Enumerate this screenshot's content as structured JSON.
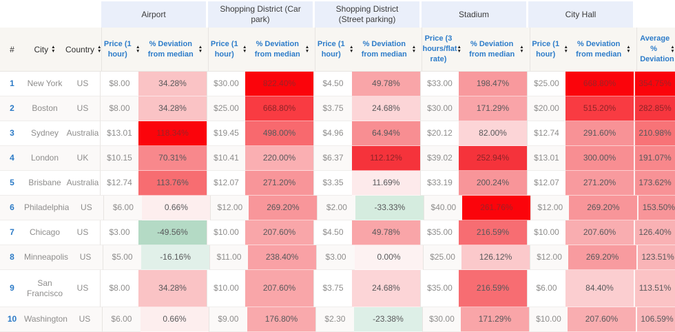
{
  "colors": {
    "accent_blue": "#2d7cc9",
    "rank_blue": "#2b7ac6",
    "group_header_bg": "#eaeffa",
    "subheader_bg": "#f8f6f2",
    "heat_max_red": "#fb040b",
    "heat_green_max": "#b4dac5",
    "text_muted": "#8e8d8c",
    "text_dev": "#58585a"
  },
  "table": {
    "left_headers": [
      {
        "label": "#",
        "sortable": false
      },
      {
        "label": "City",
        "sortable": true
      },
      {
        "label": "Country",
        "sortable": true
      }
    ],
    "deviation_label": "% Deviation from median",
    "avg_header": "Average % Deviation",
    "groups": [
      {
        "title": "Airport",
        "price_label": "Price (1 hour)"
      },
      {
        "title": "Shopping District (Car park)",
        "price_label": "Price (1 hour)"
      },
      {
        "title": "Shopping District (Street parking)",
        "price_label": "Price (1 hour)"
      },
      {
        "title": "Stadium",
        "price_label": "Price (3 hours/flat rate)"
      },
      {
        "title": "City Hall",
        "price_label": "Price (1 hour)"
      }
    ],
    "rows": [
      {
        "rank": "1",
        "city": "New York",
        "country": "US",
        "tall": false,
        "cells": [
          {
            "price": "$8.00",
            "dev": "34.28%",
            "bg": "#fac3c5"
          },
          {
            "price": "$30.00",
            "dev": "822.40%",
            "bg": "#fb040b",
            "tc": "#a02126"
          },
          {
            "price": "$4.50",
            "dev": "49.78%",
            "bg": "#f9a5a8"
          },
          {
            "price": "$33.00",
            "dev": "198.47%",
            "bg": "#f8999d"
          },
          {
            "price": "$25.00",
            "dev": "668.80%",
            "bg": "#fb040b",
            "tc": "#a02126"
          }
        ],
        "avg": {
          "dev": "354.75%",
          "bg": "#fb040b",
          "tc": "#a02126"
        }
      },
      {
        "rank": "2",
        "city": "Boston",
        "country": "US",
        "tall": false,
        "cells": [
          {
            "price": "$8.00",
            "dev": "34.28%",
            "bg": "#fac3c5"
          },
          {
            "price": "$25.00",
            "dev": "668.80%",
            "bg": "#f93b42",
            "tc": "#8c2327"
          },
          {
            "price": "$3.75",
            "dev": "24.68%",
            "bg": "#fcd5d7"
          },
          {
            "price": "$30.00",
            "dev": "171.29%",
            "bg": "#f9a4a8"
          },
          {
            "price": "$20.00",
            "dev": "515.20%",
            "bg": "#f93b42",
            "tc": "#8c2327"
          }
        ],
        "avg": {
          "dev": "282.85%",
          "bg": "#f7363e",
          "tc": "#8c2327"
        }
      },
      {
        "rank": "3",
        "city": "Sydney",
        "country": "Australia",
        "tall": false,
        "cells": [
          {
            "price": "$13.01",
            "dev": "118.34%",
            "bg": "#fb040b",
            "tc": "#a02126"
          },
          {
            "price": "$19.45",
            "dev": "498.00%",
            "bg": "#f8696e"
          },
          {
            "price": "$4.96",
            "dev": "64.94%",
            "bg": "#f88e92"
          },
          {
            "price": "$20.12",
            "dev": "82.00%",
            "bg": "#fcd5d7"
          },
          {
            "price": "$12.74",
            "dev": "291.60%",
            "bg": "#f89296"
          }
        ],
        "avg": {
          "dev": "210.98%",
          "bg": "#f87377"
        }
      },
      {
        "rank": "4",
        "city": "London",
        "country": "UK",
        "tall": false,
        "cells": [
          {
            "price": "$10.15",
            "dev": "70.31%",
            "bg": "#f8888c"
          },
          {
            "price": "$10.41",
            "dev": "220.00%",
            "bg": "#faafb2"
          },
          {
            "price": "$6.37",
            "dev": "112.12%",
            "bg": "#f5333b",
            "tc": "#8c2327"
          },
          {
            "price": "$39.02",
            "dev": "252.94%",
            "bg": "#f5333b",
            "tc": "#8c2327"
          },
          {
            "price": "$13.01",
            "dev": "300.00%",
            "bg": "#f88e92"
          }
        ],
        "avg": {
          "dev": "191.07%",
          "bg": "#f8878b"
        }
      },
      {
        "rank": "5",
        "city": "Brisbane",
        "country": "Australia",
        "tall": false,
        "cells": [
          {
            "price": "$12.74",
            "dev": "113.76%",
            "bg": "#f76d71"
          },
          {
            "price": "$12.07",
            "dev": "271.20%",
            "bg": "#f89599"
          },
          {
            "price": "$3.35",
            "dev": "11.69%",
            "bg": "#fdeaeb"
          },
          {
            "price": "$33.19",
            "dev": "200.24%",
            "bg": "#f89599"
          },
          {
            "price": "$12.07",
            "dev": "271.20%",
            "bg": "#f89a9e"
          }
        ],
        "avg": {
          "dev": "173.62%",
          "bg": "#f89296"
        }
      },
      {
        "rank": "6",
        "city": "Philadelphia",
        "country": "US",
        "tall": false,
        "cells": [
          {
            "price": "$6.00",
            "dev": "0.66%",
            "bg": "#fdeeee"
          },
          {
            "price": "$12.00",
            "dev": "269.20%",
            "bg": "#f8969a"
          },
          {
            "price": "$2.00",
            "dev": "-33.33%",
            "bg": "#d5ecdf"
          },
          {
            "price": "$40.00",
            "dev": "261.76%",
            "bg": "#fb040b",
            "tc": "#a02126"
          },
          {
            "price": "$12.00",
            "dev": "269.20%",
            "bg": "#f89599"
          }
        ],
        "avg": {
          "dev": "153.50%",
          "bg": "#f89599"
        }
      },
      {
        "rank": "7",
        "city": "Chicago",
        "country": "US",
        "tall": false,
        "cells": [
          {
            "price": "$3.00",
            "dev": "-49.56%",
            "bg": "#b4dac5"
          },
          {
            "price": "$10.00",
            "dev": "207.60%",
            "bg": "#f9a6a9"
          },
          {
            "price": "$4.50",
            "dev": "49.78%",
            "bg": "#f9a5a8"
          },
          {
            "price": "$35.00",
            "dev": "216.59%",
            "bg": "#f76d72"
          },
          {
            "price": "$10.00",
            "dev": "207.60%",
            "bg": "#f9adb0"
          }
        ],
        "avg": {
          "dev": "126.40%",
          "bg": "#f9b1b4"
        }
      },
      {
        "rank": "8",
        "city": "Minneapolis",
        "country": "US",
        "tall": false,
        "cells": [
          {
            "price": "$5.00",
            "dev": "-16.16%",
            "bg": "#e1f0e9"
          },
          {
            "price": "$11.00",
            "dev": "238.40%",
            "bg": "#f9a1a5"
          },
          {
            "price": "$3.00",
            "dev": "0.00%",
            "bg": "#fdf2f2"
          },
          {
            "price": "$25.00",
            "dev": "126.12%",
            "bg": "#fbc9cb"
          },
          {
            "price": "$12.00",
            "dev": "269.20%",
            "bg": "#f89b9f"
          }
        ],
        "avg": {
          "dev": "123.51%",
          "bg": "#f9b4b7"
        }
      },
      {
        "rank": "9",
        "city": "San Francisco",
        "country": "US",
        "tall": true,
        "cells": [
          {
            "price": "$8.00",
            "dev": "34.28%",
            "bg": "#fac3c5"
          },
          {
            "price": "$10.00",
            "dev": "207.60%",
            "bg": "#f9a6a9"
          },
          {
            "price": "$3.75",
            "dev": "24.68%",
            "bg": "#fcd5d7"
          },
          {
            "price": "$35.00",
            "dev": "216.59%",
            "bg": "#f76d72"
          },
          {
            "price": "$6.00",
            "dev": "84.40%",
            "bg": "#fbced0"
          }
        ],
        "avg": {
          "dev": "113.51%",
          "bg": "#fbc3c5"
        }
      },
      {
        "rank": "10",
        "city": "Washington",
        "country": "US",
        "tall": false,
        "cells": [
          {
            "price": "$6.00",
            "dev": "0.66%",
            "bg": "#fdeeee"
          },
          {
            "price": "$9.00",
            "dev": "176.80%",
            "bg": "#f9a9ac"
          },
          {
            "price": "$2.30",
            "dev": "-23.38%",
            "bg": "#ddefe7"
          },
          {
            "price": "$30.00",
            "dev": "171.29%",
            "bg": "#f9a5a8"
          },
          {
            "price": "$10.00",
            "dev": "207.60%",
            "bg": "#f9adb0"
          }
        ],
        "avg": {
          "dev": "106.59%",
          "bg": "#f9b7ba"
        }
      }
    ]
  }
}
